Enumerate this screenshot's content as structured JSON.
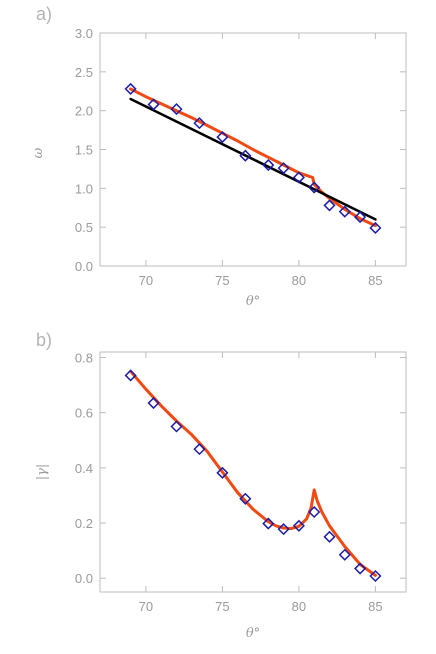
{
  "chart_data": [
    {
      "type": "scatter",
      "panel_label": "a)",
      "xlabel": "θ°",
      "ylabel": "ω",
      "xlim": [
        67,
        87
      ],
      "ylim": [
        0.0,
        3.0
      ],
      "xticks": [
        70,
        75,
        80,
        85
      ],
      "yticks": [
        0.0,
        0.5,
        1.0,
        1.5,
        2.0,
        2.5,
        3.0
      ],
      "ytick_labels": [
        "0.0",
        "0.5",
        "1.0",
        "1.5",
        "2.0",
        "2.5",
        "3.0"
      ],
      "grid": false,
      "colors": {
        "points": "#1c1ca8",
        "fit_curve": "#f04a12",
        "linear_fit": "#000000"
      },
      "series": [
        {
          "kind": "points",
          "marker": "diamond",
          "x": [
            69,
            70.5,
            72,
            73.5,
            75,
            76.5,
            78,
            79,
            80,
            81,
            82,
            83,
            84,
            85
          ],
          "y": [
            2.28,
            2.08,
            2.02,
            1.84,
            1.66,
            1.42,
            1.3,
            1.26,
            1.14,
            1.01,
            0.78,
            0.7,
            0.63,
            0.49
          ]
        },
        {
          "kind": "line",
          "x": [
            69,
            70,
            71,
            72,
            73,
            74,
            75,
            76,
            77,
            78,
            79,
            80,
            80.9,
            81.0,
            81.5,
            82,
            83,
            84,
            85
          ],
          "y": [
            2.28,
            2.18,
            2.09,
            2.0,
            1.91,
            1.81,
            1.71,
            1.61,
            1.5,
            1.4,
            1.3,
            1.2,
            1.14,
            1.05,
            0.95,
            0.87,
            0.73,
            0.61,
            0.52
          ]
        },
        {
          "kind": "line",
          "x": [
            69,
            85
          ],
          "y": [
            2.15,
            0.6
          ]
        }
      ]
    },
    {
      "type": "scatter",
      "panel_label": "b)",
      "xlabel": "θ°",
      "ylabel": "|γ|",
      "xlim": [
        67,
        87
      ],
      "ylim": [
        -0.05,
        0.82
      ],
      "xticks": [
        70,
        75,
        80,
        85
      ],
      "yticks": [
        0.0,
        0.2,
        0.4,
        0.6,
        0.8
      ],
      "ytick_labels": [
        "0.0",
        "0.2",
        "0.4",
        "0.6",
        "0.8"
      ],
      "grid": false,
      "colors": {
        "points": "#1c1ca8",
        "fit_curve": "#f04a12"
      },
      "series": [
        {
          "kind": "points",
          "marker": "diamond",
          "x": [
            69,
            70.5,
            72,
            73.5,
            75,
            76.5,
            78,
            79,
            80,
            81,
            82,
            83,
            84,
            85
          ],
          "y": [
            0.735,
            0.635,
            0.55,
            0.468,
            0.382,
            0.288,
            0.198,
            0.178,
            0.19,
            0.24,
            0.15,
            0.085,
            0.035,
            0.008
          ]
        },
        {
          "kind": "line",
          "x": [
            69,
            70,
            71,
            72,
            73,
            74,
            75,
            76,
            77,
            78,
            78.5,
            79,
            79.5,
            80,
            80.5,
            80.8,
            81.0,
            81.2,
            81.5,
            82,
            83,
            84,
            85
          ],
          "y": [
            0.75,
            0.685,
            0.625,
            0.57,
            0.52,
            0.46,
            0.385,
            0.31,
            0.25,
            0.205,
            0.19,
            0.182,
            0.18,
            0.188,
            0.215,
            0.255,
            0.32,
            0.28,
            0.24,
            0.19,
            0.115,
            0.05,
            0.01
          ]
        }
      ]
    }
  ]
}
